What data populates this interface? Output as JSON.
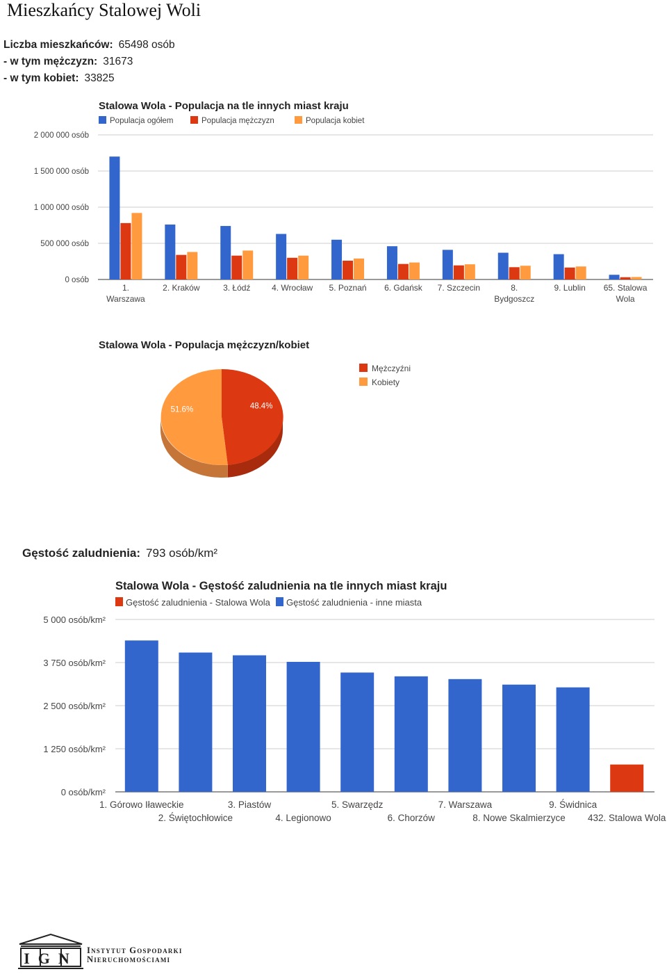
{
  "page": {
    "title": "Mieszkańcy Stalowej Woli",
    "stats": [
      {
        "label": "Liczba mieszkańców:",
        "value": "65498 osób"
      },
      {
        "label": "- w tym mężczyzn:",
        "value": "31673"
      },
      {
        "label": "- w tym kobiet:",
        "value": "33825"
      }
    ],
    "density": {
      "label": "Gęstość zaludnienia:",
      "value": "793 osób/km²"
    },
    "logo": {
      "letters": "IGN",
      "line1": "Instytut Gospodarki",
      "line2": "Nieruchomościami"
    }
  },
  "colors": {
    "blue": "#3366cc",
    "red": "#dc3912",
    "orange": "#ff9a3e"
  },
  "chart_data": [
    {
      "type": "bar",
      "title": "Stalowa Wola - Populacja na tle innych miast kraju",
      "categories": [
        [
          "1.",
          "Warszawa"
        ],
        [
          "2. Kraków"
        ],
        [
          "3. Łódź"
        ],
        [
          "4. Wrocław"
        ],
        [
          "5. Poznań"
        ],
        [
          "6. Gdańsk"
        ],
        [
          "7. Szczecin"
        ],
        [
          "8.",
          "Bydgoszcz"
        ],
        [
          "9. Lublin"
        ],
        [
          "65. Stalowa",
          "Wola"
        ]
      ],
      "series": [
        {
          "name": "Populacja ogółem",
          "color": "#3366cc",
          "values": [
            1700000,
            760000,
            740000,
            630000,
            550000,
            460000,
            410000,
            370000,
            350000,
            65000
          ]
        },
        {
          "name": "Populacja mężczyzn",
          "color": "#dc3912",
          "values": [
            780000,
            340000,
            330000,
            300000,
            260000,
            215000,
            195000,
            170000,
            165000,
            31000
          ]
        },
        {
          "name": "Populacja kobiet",
          "color": "#ff9a3e",
          "values": [
            920000,
            380000,
            400000,
            330000,
            290000,
            235000,
            210000,
            190000,
            180000,
            34000
          ]
        }
      ],
      "yticks": [
        "0 osób",
        "500 000 osób",
        "1 000 000 osób",
        "1 500 000 osób",
        "2 000 000 osób"
      ],
      "ylim": [
        0,
        2000000
      ],
      "legend": "top",
      "grid": true
    },
    {
      "type": "pie",
      "title": "Stalowa Wola - Populacja mężczyzn/kobiet",
      "slices": [
        {
          "label": "Mężczyźni",
          "value": 48.4,
          "text": "48.4%",
          "color": "#dc3912"
        },
        {
          "label": "Kobiety",
          "value": 51.6,
          "text": "51.6%",
          "color": "#ff9a3e"
        }
      ],
      "legend": "right"
    },
    {
      "type": "bar",
      "title": "Stalowa Wola - Gęstość zaludnienia na tle innych miast kraju",
      "categories": [
        "1. Górowo Iławeckie",
        "2. Świętochłowice",
        "3. Piastów",
        "4. Legionowo",
        "5. Swarzędz",
        "6. Chorzów",
        "7. Warszawa",
        "8. Nowe Skalmierzyce",
        "9. Świdnica",
        "432. Stalowa Wola"
      ],
      "series": [
        {
          "name": "Gęstość zaludnienia - Stalowa Wola",
          "color": "#dc3912"
        },
        {
          "name": "Gęstość zaludnienia - inne miasta",
          "color": "#3366cc"
        }
      ],
      "values": [
        4390,
        4040,
        3960,
        3770,
        3460,
        3350,
        3270,
        3110,
        3030,
        793
      ],
      "yticks": [
        "0 osób/km²",
        "1 250 osób/km²",
        "2 500 osób/km²",
        "3 750 osób/km²",
        "5 000 osób/km²"
      ],
      "ylim": [
        0,
        5000
      ],
      "legend": "top",
      "grid": true
    }
  ]
}
